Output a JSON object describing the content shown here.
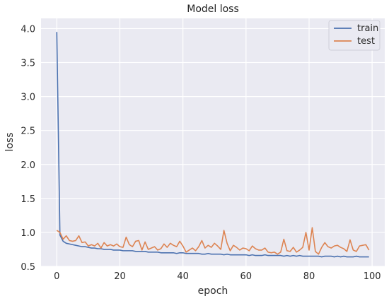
{
  "chart_data": {
    "type": "line",
    "title": "Model loss",
    "xlabel": "epoch",
    "ylabel": "loss",
    "xlim": [
      -5,
      104
    ],
    "ylim": [
      0.5,
      4.15
    ],
    "xticks": [
      0,
      20,
      40,
      60,
      80,
      100
    ],
    "yticks": [
      0.5,
      1.0,
      1.5,
      2.0,
      2.5,
      3.0,
      3.5,
      4.0
    ],
    "xtick_labels": [
      "0",
      "20",
      "40",
      "60",
      "80",
      "100"
    ],
    "ytick_labels": [
      "0.5",
      "1.0",
      "1.5",
      "2.0",
      "2.5",
      "3.0",
      "3.5",
      "4.0"
    ],
    "grid": true,
    "background": "#eaeaf2",
    "legend_position": "top-right",
    "series": [
      {
        "name": "train",
        "color": "#4c72b0",
        "values": [
          3.95,
          0.96,
          0.87,
          0.84,
          0.83,
          0.82,
          0.81,
          0.8,
          0.79,
          0.79,
          0.78,
          0.77,
          0.77,
          0.76,
          0.76,
          0.75,
          0.75,
          0.75,
          0.74,
          0.74,
          0.74,
          0.73,
          0.73,
          0.73,
          0.73,
          0.72,
          0.72,
          0.72,
          0.72,
          0.71,
          0.71,
          0.71,
          0.71,
          0.7,
          0.7,
          0.7,
          0.7,
          0.7,
          0.69,
          0.7,
          0.7,
          0.69,
          0.69,
          0.69,
          0.69,
          0.69,
          0.68,
          0.68,
          0.69,
          0.68,
          0.68,
          0.68,
          0.68,
          0.67,
          0.68,
          0.67,
          0.67,
          0.67,
          0.67,
          0.67,
          0.67,
          0.66,
          0.67,
          0.66,
          0.66,
          0.66,
          0.67,
          0.66,
          0.66,
          0.66,
          0.66,
          0.66,
          0.65,
          0.66,
          0.65,
          0.66,
          0.65,
          0.66,
          0.65,
          0.65,
          0.65,
          0.65,
          0.65,
          0.65,
          0.64,
          0.65,
          0.65,
          0.65,
          0.64,
          0.65,
          0.64,
          0.65,
          0.64,
          0.64,
          0.64,
          0.65,
          0.64,
          0.64,
          0.64,
          0.64
        ]
      },
      {
        "name": "test",
        "color": "#dd8452",
        "values": [
          1.03,
          1.0,
          0.9,
          0.95,
          0.88,
          0.87,
          0.88,
          0.95,
          0.85,
          0.86,
          0.8,
          0.82,
          0.8,
          0.84,
          0.77,
          0.85,
          0.8,
          0.82,
          0.8,
          0.83,
          0.79,
          0.78,
          0.93,
          0.82,
          0.79,
          0.87,
          0.88,
          0.74,
          0.86,
          0.75,
          0.77,
          0.79,
          0.74,
          0.76,
          0.83,
          0.78,
          0.84,
          0.81,
          0.79,
          0.87,
          0.8,
          0.71,
          0.74,
          0.77,
          0.73,
          0.79,
          0.88,
          0.77,
          0.81,
          0.78,
          0.84,
          0.8,
          0.75,
          1.03,
          0.84,
          0.73,
          0.81,
          0.78,
          0.74,
          0.77,
          0.76,
          0.73,
          0.8,
          0.76,
          0.74,
          0.74,
          0.77,
          0.71,
          0.7,
          0.71,
          0.68,
          0.71,
          0.9,
          0.73,
          0.72,
          0.78,
          0.71,
          0.74,
          0.78,
          1.0,
          0.74,
          1.07,
          0.72,
          0.68,
          0.78,
          0.85,
          0.79,
          0.77,
          0.8,
          0.81,
          0.78,
          0.76,
          0.72,
          0.89,
          0.74,
          0.72,
          0.8,
          0.81,
          0.82,
          0.74
        ]
      }
    ]
  }
}
